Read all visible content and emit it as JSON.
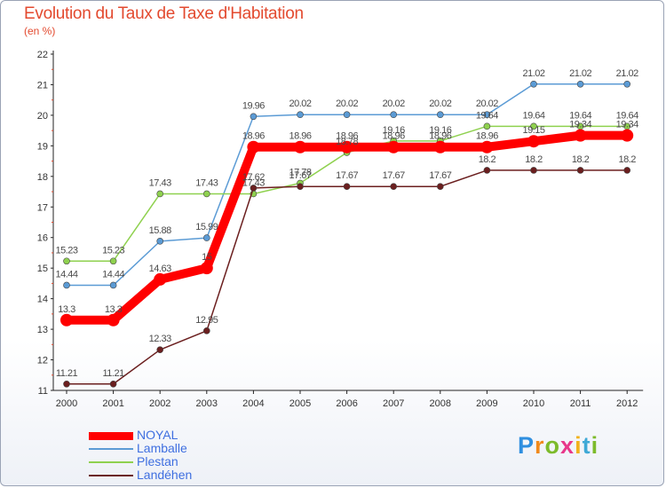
{
  "title": "Evolution du Taux de Taxe d'Habitation",
  "subtitle": "(en %)",
  "logo": "Proxiti",
  "chart_data": {
    "type": "line",
    "x": [
      "2000",
      "2001",
      "2002",
      "2003",
      "2004",
      "2005",
      "2006",
      "2007",
      "2008",
      "2009",
      "2010",
      "2011",
      "2012"
    ],
    "ylim": [
      11,
      22
    ],
    "yticks": [
      11,
      12,
      13,
      14,
      15,
      16,
      17,
      18,
      19,
      20,
      21,
      22
    ],
    "grid": false,
    "legend_position": "bottom-left",
    "series": [
      {
        "name": "NOYAL",
        "color": "#ff0000",
        "values": [
          13.3,
          13.3,
          14.63,
          15.0,
          18.96,
          18.96,
          18.96,
          18.96,
          18.96,
          18.96,
          19.15,
          19.34,
          19.34
        ],
        "labels": [
          "13.3",
          "13.3",
          "14.63",
          "15",
          "18.96",
          "18.96",
          "18.96",
          "18.96",
          "18.96",
          "18.96",
          "19.15",
          "19.34",
          "19.34"
        ]
      },
      {
        "name": "Lamballe",
        "color": "#5b9bd5",
        "values": [
          14.44,
          14.44,
          15.88,
          15.99,
          19.96,
          20.02,
          20.02,
          20.02,
          20.02,
          20.02,
          21.02,
          21.02,
          21.02
        ],
        "labels": [
          "14.44",
          "14.44",
          "15.88",
          "15.99",
          "19.96",
          "20.02",
          "20.02",
          "20.02",
          "20.02",
          "20.02",
          "21.02",
          "21.02",
          "21.02"
        ]
      },
      {
        "name": "Plestan",
        "color": "#8fd14f",
        "values": [
          15.23,
          15.23,
          17.43,
          17.43,
          17.43,
          17.78,
          18.78,
          19.16,
          19.16,
          19.64,
          19.64,
          19.64,
          19.64
        ],
        "labels": [
          "15.23",
          "15.23",
          "17.43",
          "17.43",
          "17.43",
          "17.78",
          "18.78",
          "19.16",
          "19.16",
          "19.64",
          "19.64",
          "19.64",
          "19.64"
        ]
      },
      {
        "name": "Landéhen",
        "color": "#6b1f1f",
        "values": [
          11.21,
          11.21,
          12.33,
          12.95,
          17.62,
          17.67,
          17.67,
          17.67,
          17.67,
          18.2,
          18.2,
          18.2,
          18.2
        ],
        "labels": [
          "11.21",
          "11.21",
          "12.33",
          "12.95",
          "17.62",
          "17.67",
          "17.67",
          "17.67",
          "17.67",
          "18.2",
          "18.2",
          "18.2",
          "18.2"
        ]
      }
    ]
  }
}
